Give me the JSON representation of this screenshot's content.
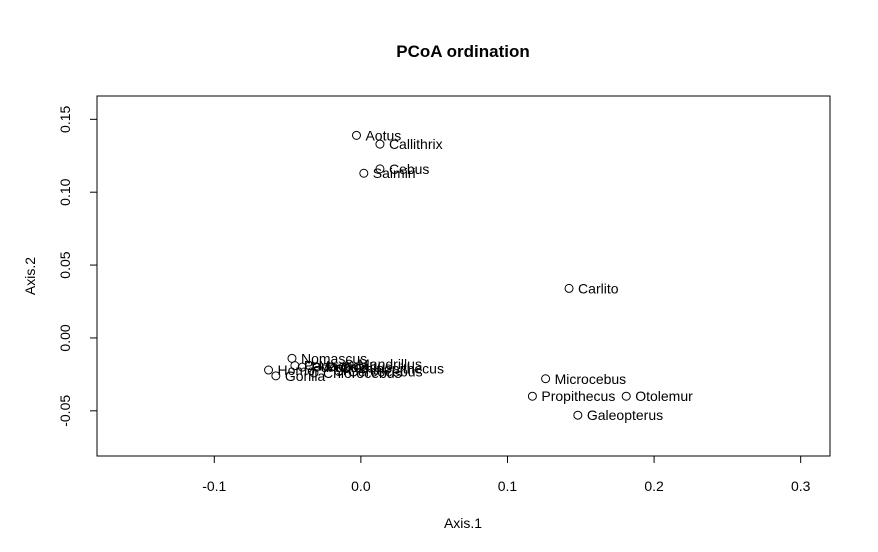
{
  "chart_data": {
    "type": "scatter",
    "title": "PCoA ordination",
    "xlabel": "Axis.1",
    "ylabel": "Axis.2",
    "xlim": [
      -0.18,
      0.32
    ],
    "ylim": [
      -0.081,
      0.166
    ],
    "xticks": [
      -0.1,
      0.0,
      0.1,
      0.2,
      0.3
    ],
    "xtick_labels": [
      "-0.1",
      "0.0",
      "0.1",
      "0.2",
      "0.3"
    ],
    "yticks": [
      -0.05,
      0.0,
      0.05,
      0.1,
      0.15
    ],
    "ytick_labels": [
      "-0.05",
      "0.00",
      "0.05",
      "0.10",
      "0.15"
    ],
    "grid": false,
    "points": [
      {
        "label": "Aotus",
        "x": -0.003,
        "y": 0.139
      },
      {
        "label": "Callithrix",
        "x": 0.013,
        "y": 0.133
      },
      {
        "label": "Cebus",
        "x": 0.013,
        "y": 0.116
      },
      {
        "label": "Saimiri",
        "x": 0.002,
        "y": 0.113
      },
      {
        "label": "Carlito",
        "x": 0.142,
        "y": 0.034
      },
      {
        "label": "Nomascus",
        "x": -0.047,
        "y": -0.014
      },
      {
        "label": "Homo",
        "x": -0.063,
        "y": -0.022
      },
      {
        "label": "Pan",
        "x": -0.045,
        "y": -0.019
      },
      {
        "label": "Pongo",
        "x": -0.04,
        "y": -0.02
      },
      {
        "label": "Gorilla",
        "x": -0.058,
        "y": -0.026
      },
      {
        "label": "Macaca",
        "x": -0.035,
        "y": -0.019
      },
      {
        "label": "Papio",
        "x": -0.03,
        "y": -0.02
      },
      {
        "label": "Chlorocebus",
        "x": -0.032,
        "y": -0.024
      },
      {
        "label": "Colobus",
        "x": -0.02,
        "y": -0.02
      },
      {
        "label": "Rhinopithecus",
        "x": -0.01,
        "y": -0.021
      },
      {
        "label": "Mandrillus",
        "x": -0.008,
        "y": -0.018
      },
      {
        "label": "Cercocebus",
        "x": -0.015,
        "y": -0.023
      },
      {
        "label": "Microcebus",
        "x": 0.126,
        "y": -0.028
      },
      {
        "label": "Propithecus",
        "x": 0.117,
        "y": -0.04
      },
      {
        "label": "Otolemur",
        "x": 0.181,
        "y": -0.04
      },
      {
        "label": "Galeopterus",
        "x": 0.148,
        "y": -0.053
      }
    ]
  }
}
